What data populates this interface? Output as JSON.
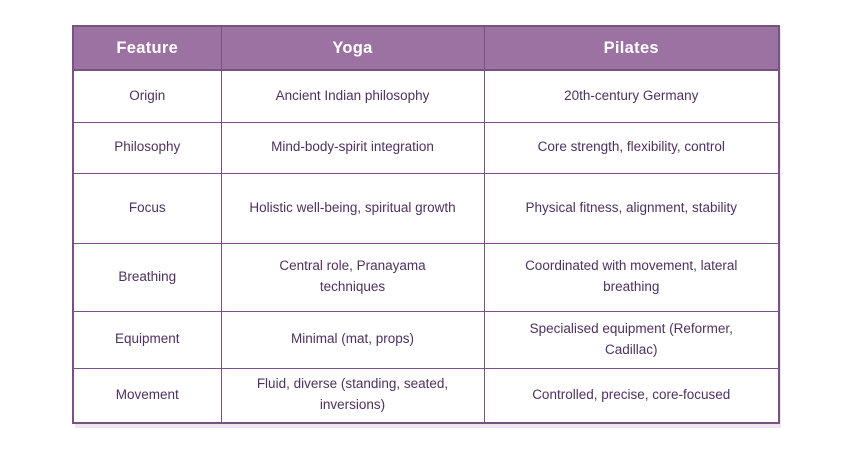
{
  "chart_data": {
    "type": "table",
    "title": "",
    "columns": [
      "Feature",
      "Yoga",
      "Pilates"
    ],
    "rows": [
      [
        "Origin",
        "Ancient Indian philosophy",
        "20th-century Germany"
      ],
      [
        "Philosophy",
        "Mind-body-spirit integration",
        "Core strength, flexibility, control"
      ],
      [
        "Focus",
        "Holistic well-being, spiritual growth",
        "Physical fitness, alignment, stability"
      ],
      [
        "Breathing",
        "Central role, Pranayama\ntechniques",
        "Coordinated with movement, lateral\nbreathing"
      ],
      [
        "Equipment",
        "Minimal (mat, props)",
        "Specialised equipment (Reformer,\nCadillac)"
      ],
      [
        "Movement",
        "Fluid, diverse (standing, seated,\ninversions)",
        "Controlled, precise, core-focused"
      ]
    ],
    "layout": {
      "grid": true,
      "header_row": true,
      "text_align": "center"
    }
  },
  "colors": {
    "header_bg": "#9C72A2",
    "header_text": "#FFFFFF",
    "border": "#7A5183",
    "cell_text": "#503061",
    "page_bg": "#FFFFFF"
  }
}
